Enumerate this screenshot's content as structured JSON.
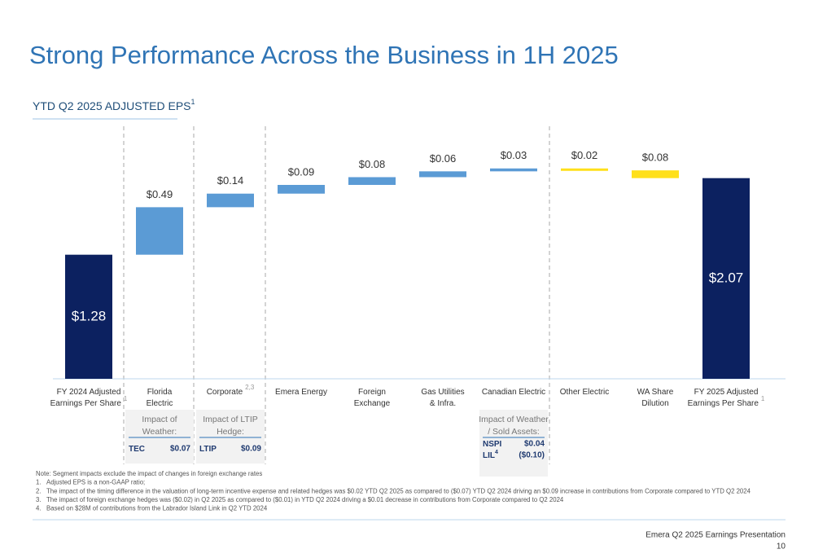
{
  "header": {
    "title": "Strong Performance Across the Business in 1H 2025",
    "subtitle": "YTD Q2 2025 ADJUSTED EPS",
    "subtitle_note": "1"
  },
  "chart_data": {
    "type": "waterfall",
    "categories": [
      [
        "FY 2024 Adjusted",
        "Earnings Per Share"
      ],
      [
        "Florida",
        "Electric"
      ],
      [
        "Corporate"
      ],
      [
        "Emera Energy"
      ],
      [
        "Foreign",
        "Exchange"
      ],
      [
        "Gas Utilities",
        "& Infra."
      ],
      [
        "Canadian Electric"
      ],
      [
        "Other Electric"
      ],
      [
        "WA Share",
        "Dilution"
      ],
      [
        "FY 2025 Adjusted",
        "Earnings Per Share"
      ]
    ],
    "category_notes": [
      "1",
      null,
      "2,3",
      null,
      null,
      null,
      null,
      null,
      null,
      "1"
    ],
    "measure": [
      "total",
      "relative",
      "relative",
      "relative",
      "relative",
      "relative",
      "relative",
      "relative",
      "relative",
      "total"
    ],
    "values": [
      1.28,
      0.49,
      0.14,
      0.09,
      0.08,
      0.06,
      0.03,
      -0.02,
      -0.08,
      2.07
    ],
    "value_labels": [
      "$1.28",
      "$0.49",
      "$0.14",
      "$0.09",
      "$0.08",
      "$0.06",
      "$0.03",
      "$0.02",
      "$0.08",
      "$2.07"
    ],
    "colors": {
      "total": "#0c2160",
      "increase": "#5b9bd5",
      "decrease": "#ffe01b"
    }
  },
  "impact_boxes": [
    {
      "category": 1,
      "title": [
        "Impact of",
        "Weather:"
      ],
      "rows": [
        {
          "label": "TEC",
          "note": null,
          "value": "$0.07"
        }
      ]
    },
    {
      "category": 2,
      "title": [
        "Impact of LTIP",
        "Hedge:"
      ],
      "rows": [
        {
          "label": "LTIP",
          "note": null,
          "value": "$0.09"
        }
      ]
    },
    {
      "category": 6,
      "title": [
        "Impact of Weather",
        "/ Sold Assets:"
      ],
      "rows": [
        {
          "label": "NSPI",
          "note": null,
          "value": "$0.04"
        },
        {
          "label": "LIL",
          "note": "4",
          "value": "($0.10)"
        }
      ]
    }
  ],
  "notes": [
    "Note: Segment impacts exclude the impact of changes in foreign exchange rates",
    "1.   Adjusted EPS is a non-GAAP ratio;",
    "2.   The impact of the timing difference in the valuation of long-term incentive expense and related hedges was $0.02 YTD Q2 2025 as compared to ($0.07) YTD Q2 2024 driving an $0.09 increase in contributions from Corporate compared to YTD Q2 2024",
    "3.   The impact of foreign exchange hedges was ($0.02) in Q2 2025 as compared to ($0.01) in YTD Q2 2024 driving a $0.01 decrease in contributions from Corporate compared to Q2 2024",
    "4.   Based on $28M of contributions from the Labrador Island Link in Q2 YTD 2024"
  ],
  "footer": {
    "presentation": "Emera Q2 2025 Earnings Presentation",
    "page": "10"
  }
}
